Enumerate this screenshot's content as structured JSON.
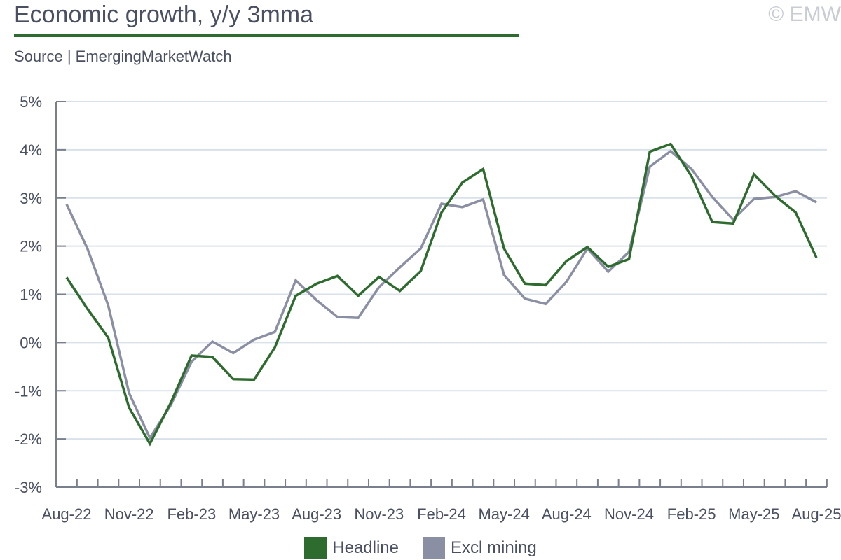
{
  "header": {
    "title": "Economic growth, y/y 3mma",
    "source": "Source | EmergingMarketWatch",
    "copyright": "© EMW"
  },
  "colors": {
    "headline": "#2e6b2e",
    "excl_mining": "#8b8fa3",
    "grid": "#d9e1ea",
    "axis": "#7a7f8e",
    "text": "#4a5061"
  },
  "chart_data": {
    "type": "line",
    "title": "Economic growth, y/y 3mma",
    "xlabel": "",
    "ylabel": "",
    "ylim": [
      -3,
      5
    ],
    "yticks": [
      "-3%",
      "-2%",
      "-1%",
      "0%",
      "1%",
      "2%",
      "3%",
      "4%",
      "5%"
    ],
    "y_tick_values": [
      -3,
      -2,
      -1,
      0,
      1,
      2,
      3,
      4,
      5
    ],
    "grid": true,
    "legend_position": "bottom-center",
    "x": [
      "Aug-22",
      "Sep-22",
      "Oct-22",
      "Nov-22",
      "Dec-22",
      "Jan-23",
      "Feb-23",
      "Mar-23",
      "Apr-23",
      "May-23",
      "Jun-23",
      "Jul-23",
      "Aug-23",
      "Sep-23",
      "Oct-23",
      "Nov-23",
      "Dec-23",
      "Jan-24",
      "Feb-24",
      "Mar-24",
      "Apr-24",
      "May-24",
      "Jun-24",
      "Jul-24",
      "Aug-24",
      "Sep-24",
      "Oct-24",
      "Nov-24",
      "Dec-24",
      "Jan-25",
      "Feb-25",
      "Mar-25",
      "Apr-25",
      "May-25",
      "Jun-25",
      "Jul-25",
      "Aug-25"
    ],
    "x_tick_labels": [
      "Aug-22",
      "Nov-22",
      "Feb-23",
      "May-23",
      "Aug-23",
      "Nov-23",
      "Feb-24",
      "May-24",
      "Aug-24",
      "Nov-24",
      "Feb-25",
      "May-25",
      "Aug-25"
    ],
    "series": [
      {
        "name": "Headline",
        "color": "#2e6b2e",
        "values": [
          1.35,
          0.7,
          0.1,
          -1.35,
          -2.1,
          -1.25,
          -0.27,
          -0.3,
          -0.76,
          -0.77,
          -0.1,
          0.97,
          1.22,
          1.38,
          0.97,
          1.36,
          1.07,
          1.48,
          2.7,
          3.32,
          3.6,
          1.95,
          1.22,
          1.19,
          1.69,
          1.98,
          1.57,
          1.73,
          3.96,
          4.12,
          3.45,
          2.5,
          2.47,
          3.49,
          3.05,
          2.7,
          1.76
        ]
      },
      {
        "name": "Excl mining",
        "color": "#8b8fa3",
        "values": [
          2.87,
          1.95,
          0.77,
          -1.05,
          -1.98,
          -1.3,
          -0.4,
          0.02,
          -0.22,
          0.06,
          0.22,
          1.29,
          0.88,
          0.53,
          0.51,
          1.15,
          1.56,
          1.95,
          2.88,
          2.81,
          2.97,
          1.4,
          0.91,
          0.8,
          1.26,
          1.95,
          1.47,
          1.88,
          3.65,
          3.97,
          3.6,
          3.02,
          2.55,
          2.98,
          3.02,
          3.14,
          2.91
        ]
      }
    ]
  }
}
